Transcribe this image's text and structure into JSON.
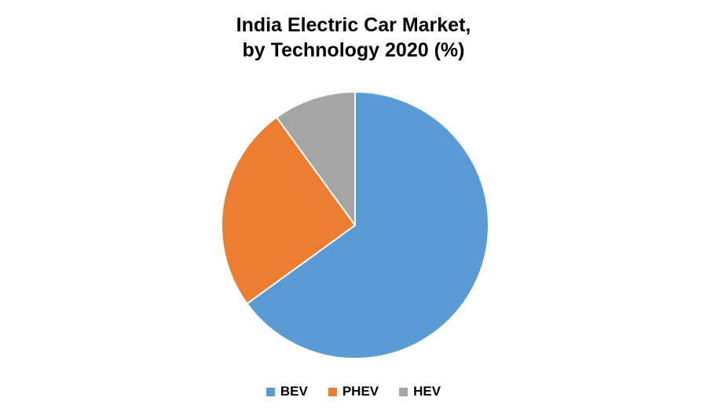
{
  "title": {
    "line1": "India Electric Car Market,",
    "line2": "by Technology 2020 (%)"
  },
  "chart_data": {
    "type": "pie",
    "title": "India Electric Car Market, by Technology 2020 (%)",
    "categories": [
      "BEV",
      "PHEV",
      "HEV"
    ],
    "values": [
      65,
      25,
      10
    ],
    "colors": [
      "#5B9BD5",
      "#ED7D31",
      "#A5A5A5"
    ],
    "legend_position": "bottom",
    "start_angle_deg": 0,
    "direction": "clockwise",
    "slice_border_color": "#FFFFFF"
  },
  "legend": {
    "items": [
      {
        "label": "BEV",
        "color": "#5B9BD5"
      },
      {
        "label": "PHEV",
        "color": "#ED7D31"
      },
      {
        "label": "HEV",
        "color": "#A5A5A5"
      }
    ]
  }
}
